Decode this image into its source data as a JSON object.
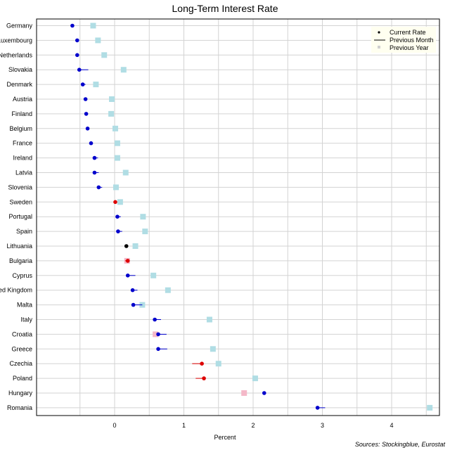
{
  "chart_data": {
    "type": "dot",
    "title": "Long-Term Interest Rate",
    "xlabel": "Percent",
    "xlim": [
      -0.7,
      4.65
    ],
    "xticks": [
      0,
      1,
      2,
      3,
      4
    ],
    "source": "Sources: Stockingblue, Eurostat",
    "legend": {
      "position": "top-right",
      "entries": [
        "Current Rate",
        "Previous Month",
        "Previous Year"
      ]
    },
    "colors": {
      "decrease": "#0000cc",
      "increase": "#dd0000",
      "unchanged": "#000000",
      "prev_year_lower": "#b0dde4",
      "prev_year_higher": "#f4b8c8",
      "grid": "#d3d3d3"
    },
    "categories": [
      "Germany",
      "Luxembourg",
      "Netherlands",
      "Slovakia",
      "Denmark",
      "Austria",
      "Finland",
      "Belgium",
      "France",
      "Ireland",
      "Latvia",
      "Slovenia",
      "Sweden",
      "Portugal",
      "Spain",
      "Lithuania",
      "Bulgaria",
      "Cyprus",
      "United Kingdom",
      "Malta",
      "Italy",
      "Croatia",
      "Greece",
      "Czechia",
      "Poland",
      "Hungary",
      "Romania"
    ],
    "series": [
      {
        "name": "Current Rate",
        "values": [
          -0.61,
          -0.54,
          -0.54,
          -0.51,
          -0.46,
          -0.42,
          -0.41,
          -0.39,
          -0.34,
          -0.29,
          -0.29,
          -0.23,
          0.01,
          0.04,
          0.05,
          0.17,
          0.19,
          0.19,
          0.26,
          0.27,
          0.58,
          0.63,
          0.63,
          1.26,
          1.29,
          2.16,
          2.93
        ]
      },
      {
        "name": "Previous Month",
        "values": [
          -0.59,
          -0.52,
          -0.52,
          -0.38,
          -0.42,
          -0.41,
          -0.4,
          -0.37,
          -0.33,
          -0.24,
          -0.23,
          -0.18,
          -0.01,
          0.09,
          0.11,
          0.17,
          0.15,
          0.3,
          0.33,
          0.4,
          0.67,
          0.75,
          0.76,
          1.12,
          1.17,
          2.18,
          3.04
        ]
      },
      {
        "name": "Previous Year",
        "values": [
          -0.31,
          -0.24,
          -0.15,
          0.13,
          -0.27,
          -0.04,
          -0.05,
          0.01,
          0.04,
          0.04,
          0.16,
          0.02,
          0.08,
          0.41,
          0.44,
          0.3,
          0.18,
          0.56,
          0.77,
          0.4,
          1.37,
          0.59,
          1.42,
          1.5,
          2.03,
          1.87,
          4.55
        ]
      }
    ]
  }
}
